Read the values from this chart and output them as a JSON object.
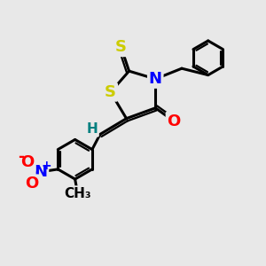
{
  "bg_color": "#e8e8e8",
  "atom_colors": {
    "S": "#cccc00",
    "S_thioxo": "#cccc00",
    "N": "#0000ff",
    "O": "#ff0000",
    "H": "#008080",
    "C": "#000000",
    "NO2_N": "#0000ff",
    "NO2_O": "#ff0000"
  },
  "bond_color": "#000000",
  "bond_width": 2.2,
  "font_size_atom": 13,
  "font_size_small": 11
}
